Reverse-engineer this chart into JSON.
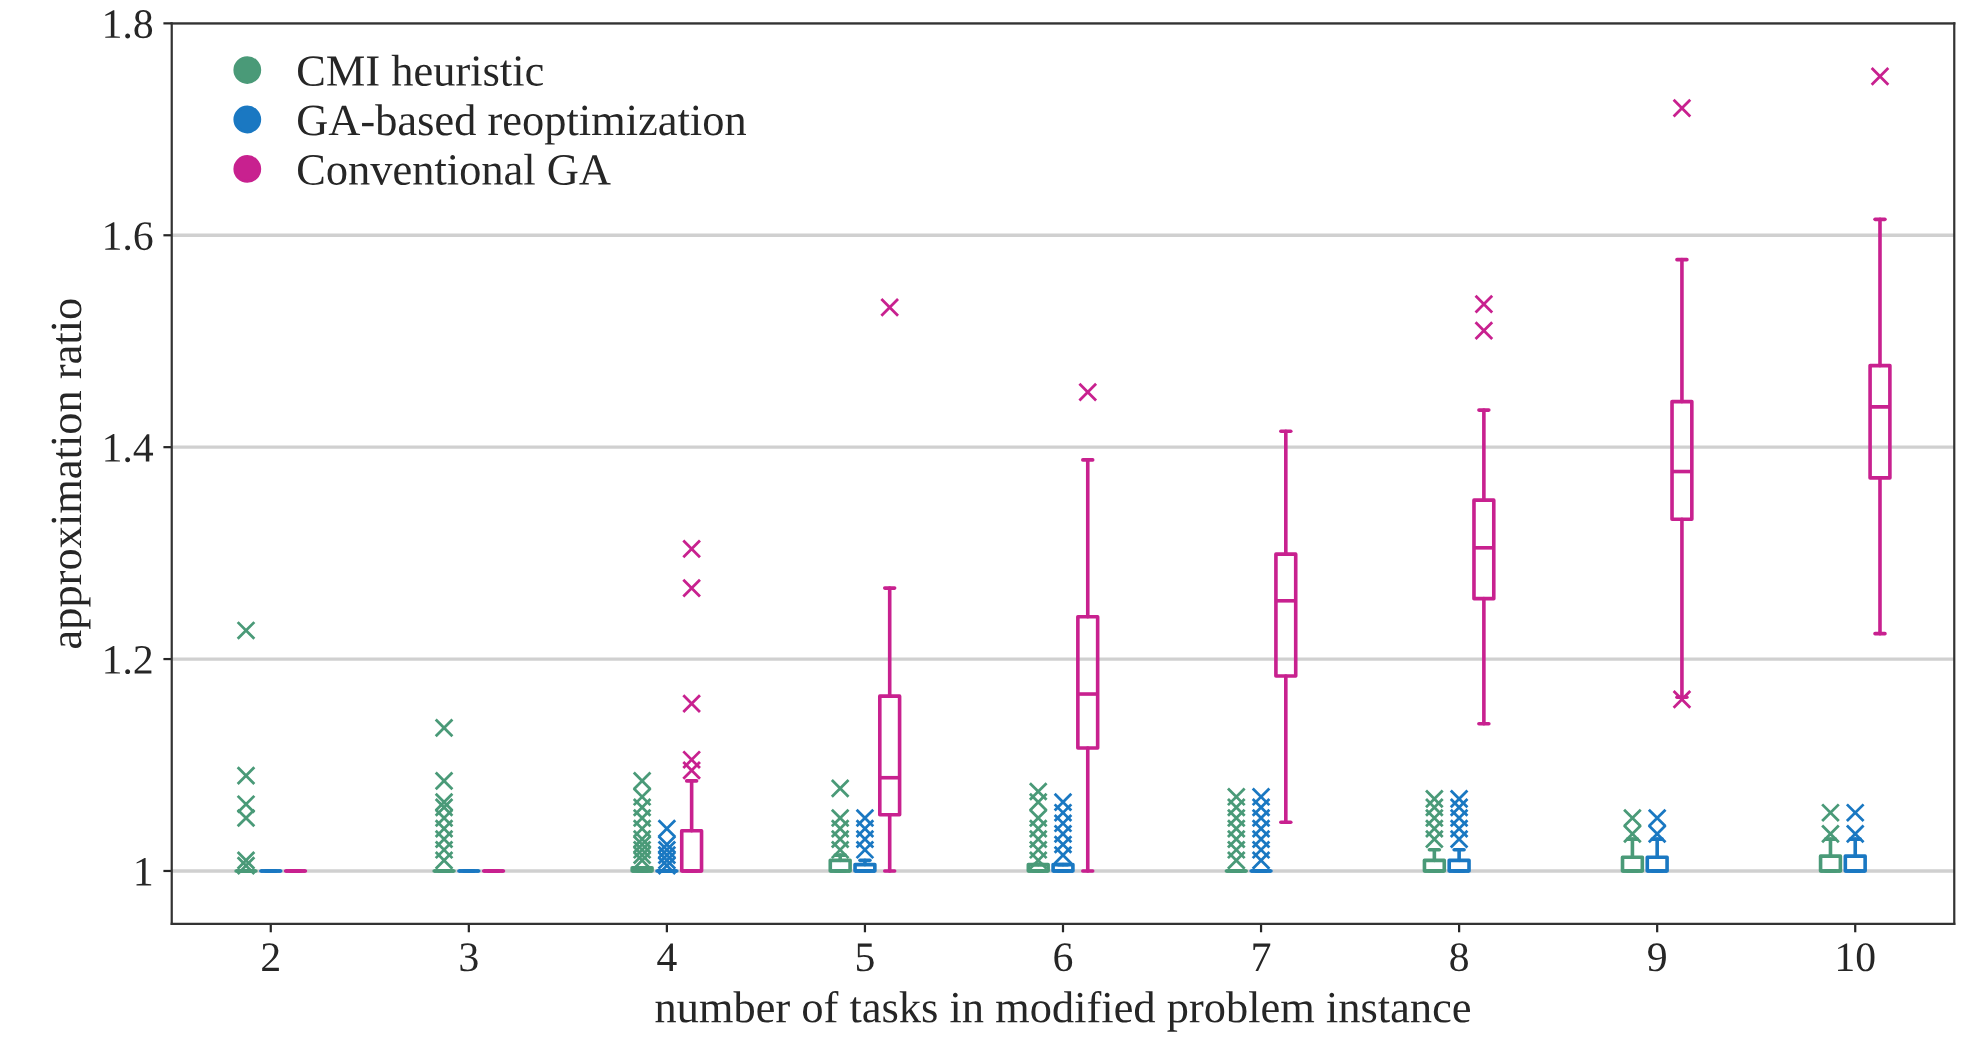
{
  "chart_data": {
    "type": "box",
    "xlabel": "number of tasks in modified problem instance",
    "ylabel": "approximation ratio",
    "categories": [
      "2",
      "3",
      "4",
      "5",
      "6",
      "7",
      "8",
      "9",
      "10"
    ],
    "ylim": [
      0.95,
      1.8
    ],
    "yticks": [
      1,
      1.2,
      1.4,
      1.6,
      1.8
    ],
    "grid": "y",
    "legend": "top left",
    "marker": "cross",
    "series": [
      {
        "name": "CMI heuristic",
        "color": "#4a9a78",
        "boxes": [
          {
            "low": 1,
            "q1": 1,
            "median": 1,
            "q3": 1,
            "high": 1,
            "outliers": [
              1.227,
              1.09,
              1.063,
              1.05,
              1.01,
              1.005
            ]
          },
          {
            "low": 1,
            "q1": 1,
            "median": 1,
            "q3": 1,
            "high": 1,
            "outliers": [
              1.135,
              1.085,
              1.065,
              1.06,
              1.05,
              1.04,
              1.03,
              1.02,
              1.01
            ]
          },
          {
            "low": 1,
            "q1": 1,
            "median": 1,
            "q3": 1.003,
            "high": 1.003,
            "outliers": [
              1.085,
              1.07,
              1.06,
              1.05,
              1.04,
              1.03,
              1.025,
              1.02,
              1.015,
              1.01
            ]
          },
          {
            "low": 1,
            "q1": 1,
            "median": 1,
            "q3": 1.01,
            "high": 1.015,
            "outliers": [
              1.078,
              1.05,
              1.04,
              1.03,
              1.02
            ]
          },
          {
            "low": 1,
            "q1": 1,
            "median": 1,
            "q3": 1.006,
            "high": 1.006,
            "outliers": [
              1.075,
              1.065,
              1.05,
              1.04,
              1.03,
              1.02,
              1.01
            ]
          },
          {
            "low": 1,
            "q1": 1,
            "median": 1,
            "q3": 1,
            "high": 1,
            "outliers": [
              1.07,
              1.06,
              1.05,
              1.04,
              1.03,
              1.02,
              1.01
            ]
          },
          {
            "low": 1,
            "q1": 1,
            "median": 1,
            "q3": 1.01,
            "high": 1.02,
            "outliers": [
              1.068,
              1.06,
              1.05,
              1.04,
              1.03
            ]
          },
          {
            "low": 1,
            "q1": 1,
            "median": 1,
            "q3": 1.013,
            "high": 1.03,
            "outliers": [
              1.05,
              1.035
            ]
          },
          {
            "low": 1,
            "q1": 1,
            "median": 1,
            "q3": 1.014,
            "high": 1.03,
            "outliers": [
              1.055,
              1.035
            ]
          }
        ]
      },
      {
        "name": "GA-based reoptimization",
        "color": "#1a78c2",
        "boxes": [
          {
            "low": 1,
            "q1": 1,
            "median": 1,
            "q3": 1,
            "high": 1
          },
          {
            "low": 1,
            "q1": 1,
            "median": 1,
            "q3": 1,
            "high": 1
          },
          {
            "low": 1,
            "q1": 1,
            "median": 1,
            "q3": 1,
            "high": 1,
            "outliers": [
              1.04,
              1.025,
              1.02,
              1.015,
              1.01,
              1.005
            ]
          },
          {
            "low": 1,
            "q1": 1,
            "median": 1,
            "q3": 1.006,
            "high": 1.01,
            "outliers": [
              1.05,
              1.04,
              1.03,
              1.02
            ]
          },
          {
            "low": 1,
            "q1": 1,
            "median": 1,
            "q3": 1.006,
            "high": 1.006,
            "outliers": [
              1.065,
              1.055,
              1.045,
              1.035,
              1.025,
              1.015
            ]
          },
          {
            "low": 1,
            "q1": 1,
            "median": 1,
            "q3": 1,
            "high": 1,
            "outliers": [
              1.07,
              1.06,
              1.05,
              1.04,
              1.03,
              1.02,
              1.01
            ]
          },
          {
            "low": 1,
            "q1": 1,
            "median": 1,
            "q3": 1.01,
            "high": 1.02,
            "outliers": [
              1.068,
              1.06,
              1.05,
              1.04,
              1.03
            ]
          },
          {
            "low": 1,
            "q1": 1,
            "median": 1,
            "q3": 1.013,
            "high": 1.03,
            "outliers": [
              1.05,
              1.035
            ]
          },
          {
            "low": 1,
            "q1": 1,
            "median": 1,
            "q3": 1.014,
            "high": 1.03,
            "outliers": [
              1.055,
              1.035
            ]
          }
        ]
      },
      {
        "name": "Conventional GA",
        "color": "#c8218f",
        "boxes": [
          {
            "low": 1,
            "q1": 1,
            "median": 1,
            "q3": 1,
            "high": 1
          },
          {
            "low": 1,
            "q1": 1,
            "median": 1,
            "q3": 1,
            "high": 1
          },
          {
            "low": 1,
            "q1": 1,
            "median": 1,
            "q3": 1.038,
            "high": 1.085,
            "outliers": [
              1.304,
              1.267,
              1.158,
              1.105,
              1.095
            ]
          },
          {
            "low": 1,
            "q1": 1.053,
            "median": 1.088,
            "q3": 1.165,
            "high": 1.267,
            "outliers": [
              1.532
            ]
          },
          {
            "low": 1,
            "q1": 1.116,
            "median": 1.167,
            "q3": 1.24,
            "high": 1.388,
            "outliers": [
              1.452
            ]
          },
          {
            "low": 1.046,
            "q1": 1.184,
            "median": 1.255,
            "q3": 1.299,
            "high": 1.415
          },
          {
            "low": 1.139,
            "q1": 1.257,
            "median": 1.305,
            "q3": 1.35,
            "high": 1.435,
            "outliers": [
              1.535,
              1.51
            ]
          },
          {
            "low": 1.164,
            "q1": 1.332,
            "median": 1.377,
            "q3": 1.443,
            "high": 1.577,
            "outliers": [
              1.72,
              1.162
            ]
          },
          {
            "low": 1.224,
            "q1": 1.371,
            "median": 1.438,
            "q3": 1.477,
            "high": 1.615,
            "outliers": [
              1.75
            ]
          }
        ]
      }
    ]
  }
}
